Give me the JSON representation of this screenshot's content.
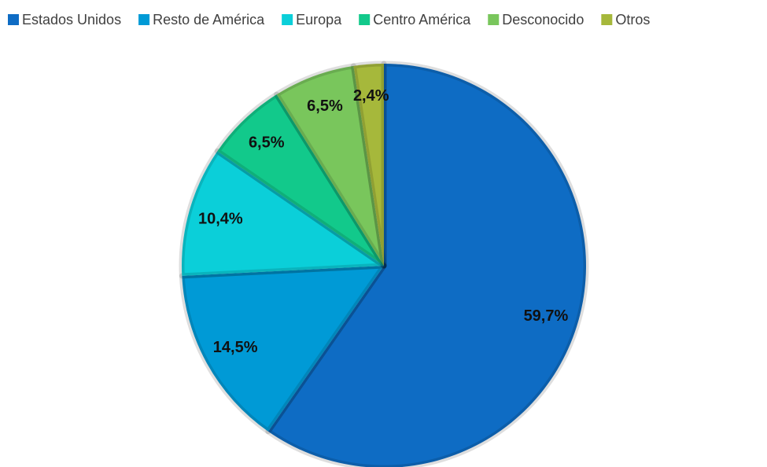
{
  "chart_data": {
    "type": "pie",
    "categories": [
      "Estados Unidos",
      "Resto de América",
      "Europa",
      "Centro América",
      "Desconocido",
      "Otros"
    ],
    "values": [
      59.7,
      14.5,
      10.4,
      6.5,
      6.5,
      2.4
    ],
    "value_labels": [
      "59,7%",
      "14,5%",
      "10,4%",
      "6,5%",
      "6,5%",
      "2,4%"
    ],
    "colors": [
      "#0e6cc4",
      "#009ad6",
      "#0bcfd9",
      "#12c98b",
      "#79c65c",
      "#a6b83b"
    ],
    "legend": "top"
  }
}
